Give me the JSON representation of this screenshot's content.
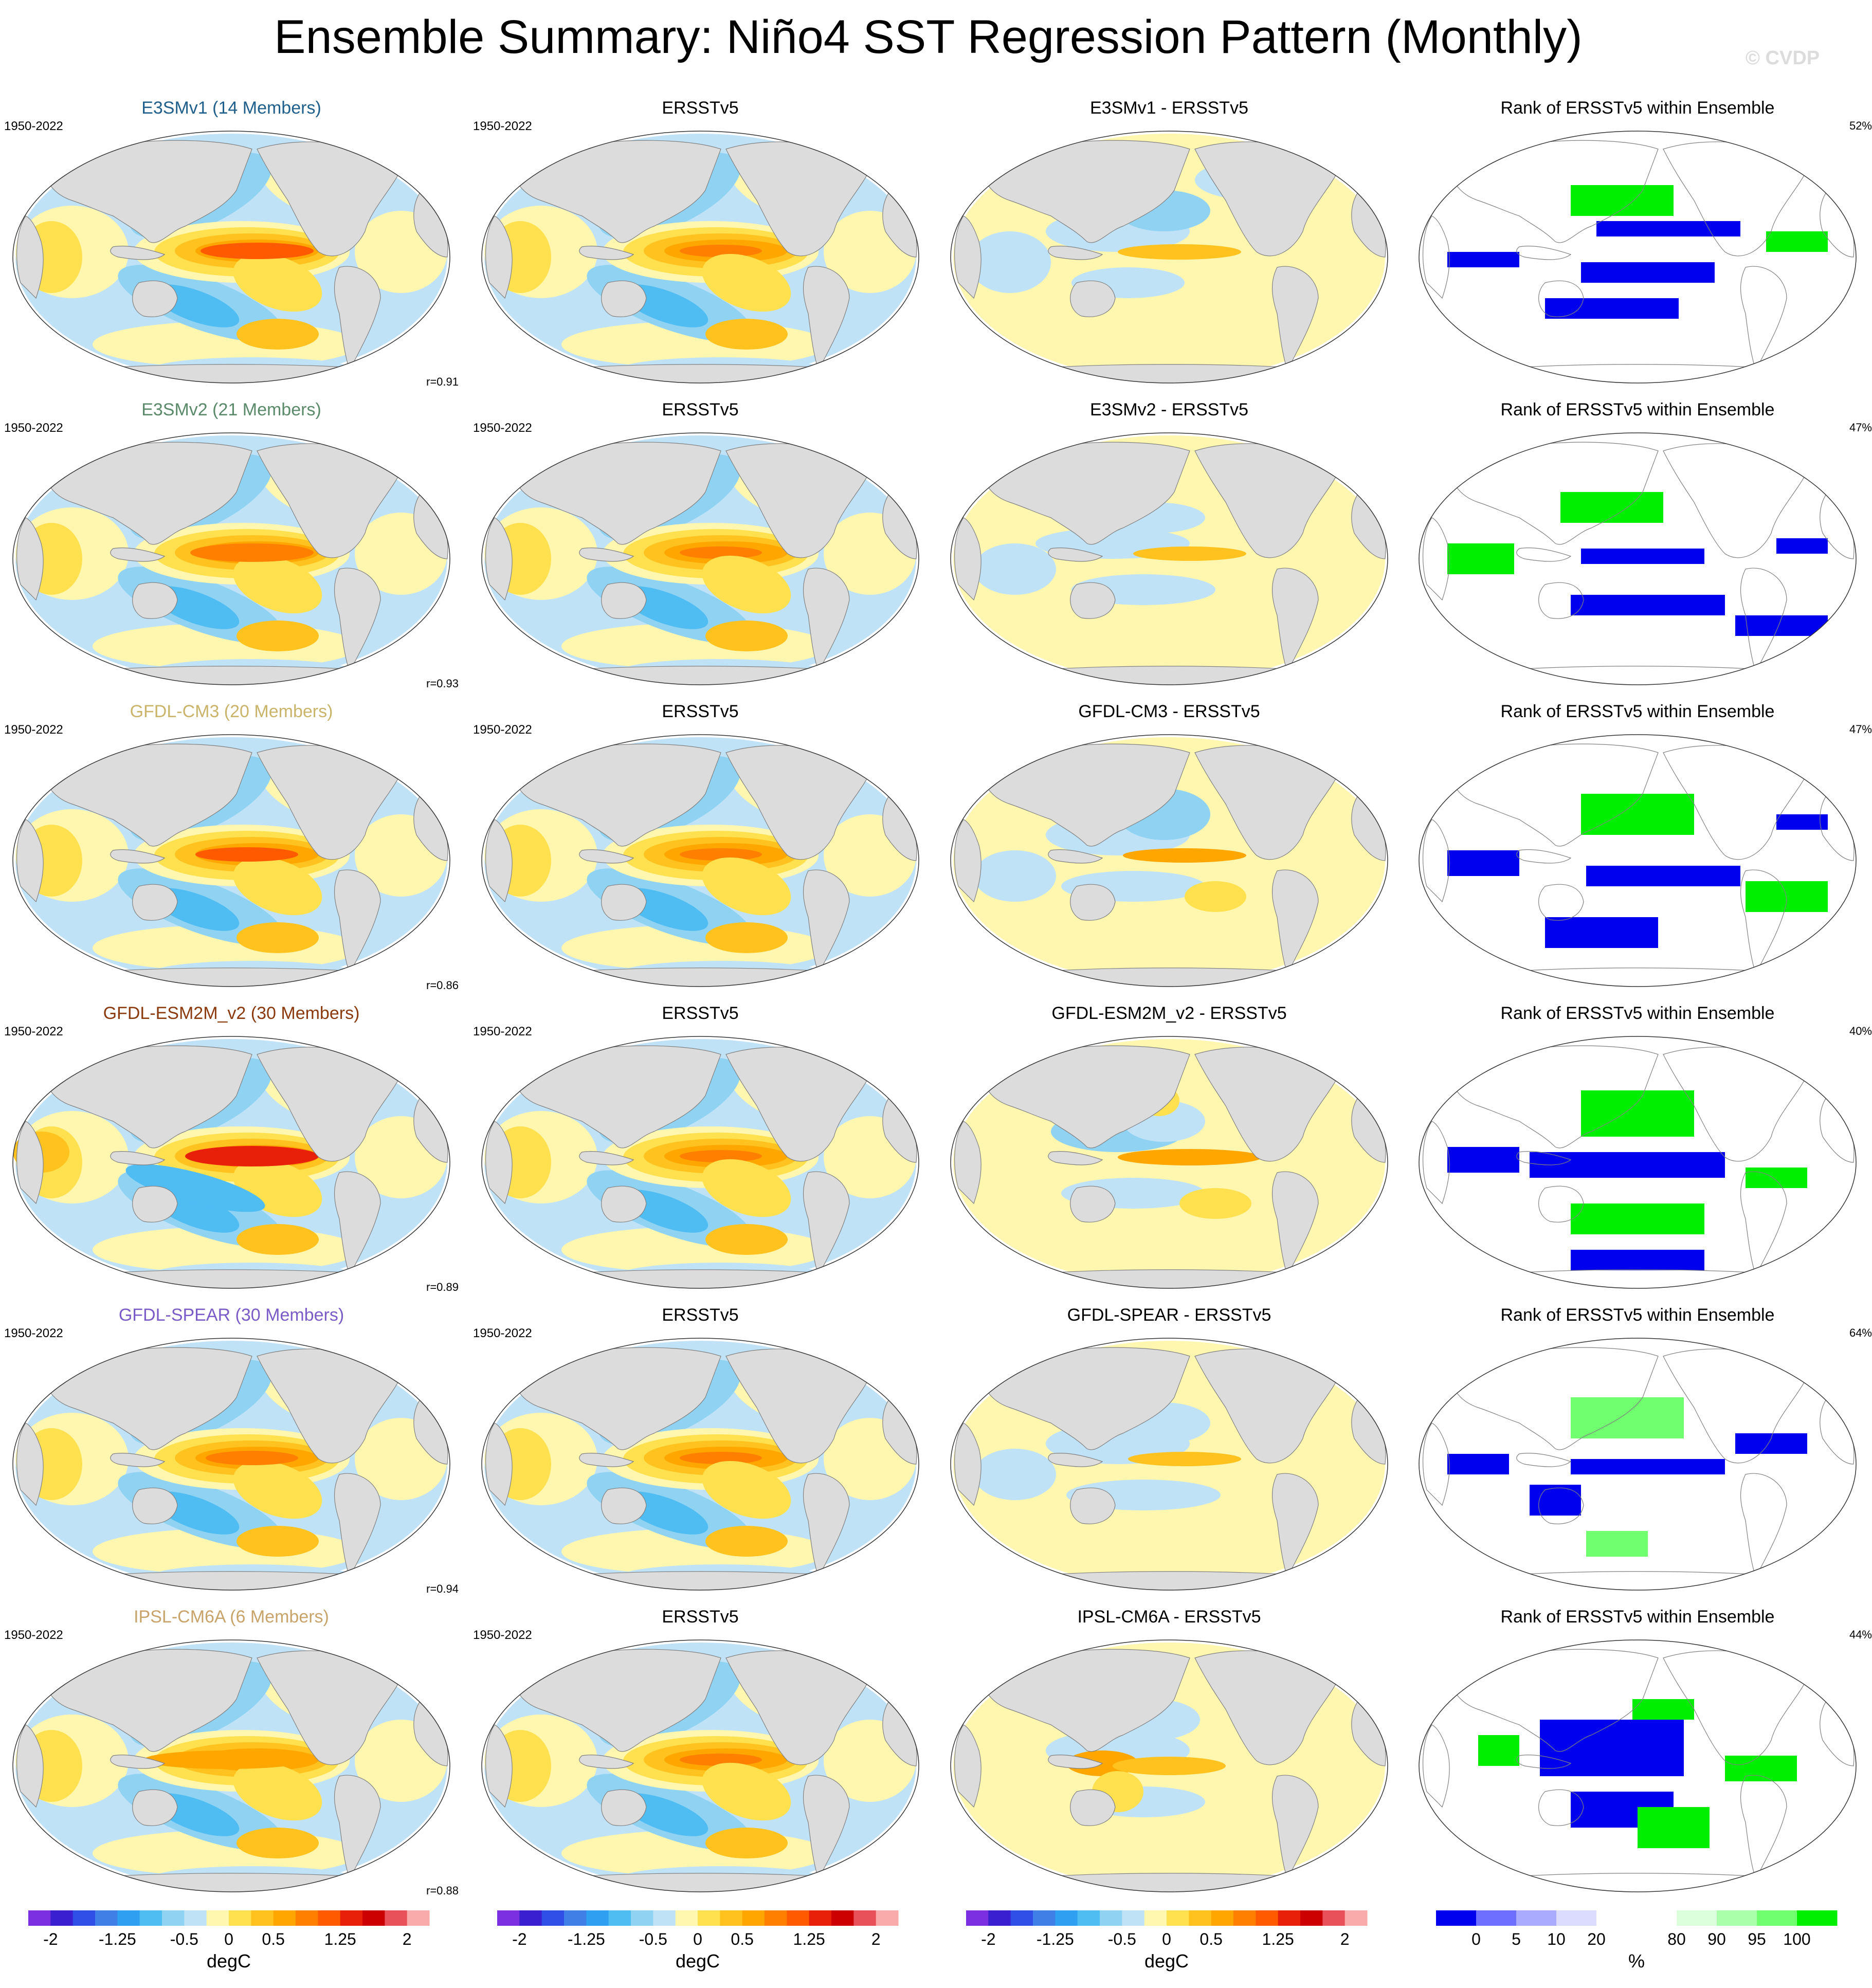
{
  "figure_title": "Ensemble Summary: Niño4 SST Regression Pattern (Monthly)",
  "watermark": "© CVDP",
  "colors": {
    "diverging": [
      "#7b2fe0",
      "#3a1fd0",
      "#2f4fe6",
      "#3f7fe6",
      "#2f9ff2",
      "#4fbcf2",
      "#8fd2f2",
      "#bfe2f7",
      "#fff7b0",
      "#ffe14f",
      "#ffc21f",
      "#ffa600",
      "#ff7f00",
      "#ff5a00",
      "#e8200a",
      "#cc0000",
      "#e8505a",
      "#f9aaaa"
    ],
    "rank": [
      "#0000ee",
      "#6f6fff",
      "#aaaaff",
      "#dcdcff",
      "#ffffff",
      "#ffffff",
      "#dcffdc",
      "#aaffaa",
      "#6fff6f",
      "#00ee00"
    ],
    "land": "#dcdcdc"
  },
  "rows": [
    {
      "model_title": "E3SMv1 (14 Members)",
      "model_color": "#1f5f8b",
      "years": "1950-2022",
      "obs_title": "ERSSTv5",
      "obs_years": "1950-2022",
      "diff_title": "E3SMv1 - ERSSTv5",
      "rank_title": "Rank of ERSSTv5 within Ensemble",
      "pct": "52%",
      "corr": "r=0.91"
    },
    {
      "model_title": "E3SMv2 (21 Members)",
      "model_color": "#5a8a6a",
      "years": "1950-2022",
      "obs_title": "ERSSTv5",
      "obs_years": "1950-2022",
      "diff_title": "E3SMv2 - ERSSTv5",
      "rank_title": "Rank of ERSSTv5 within Ensemble",
      "pct": "47%",
      "corr": "r=0.93"
    },
    {
      "model_title": "GFDL-CM3 (20 Members)",
      "model_color": "#c9b46a",
      "years": "1950-2022",
      "obs_title": "ERSSTv5",
      "obs_years": "1950-2022",
      "diff_title": "GFDL-CM3 - ERSSTv5",
      "rank_title": "Rank of ERSSTv5 within Ensemble",
      "pct": "47%",
      "corr": "r=0.86"
    },
    {
      "model_title": "GFDL-ESM2M_v2 (30 Members)",
      "model_color": "#8b3a0e",
      "years": "1950-2022",
      "obs_title": "ERSSTv5",
      "obs_years": "1950-2022",
      "diff_title": "GFDL-ESM2M_v2 - ERSSTv5",
      "rank_title": "Rank of ERSSTv5 within Ensemble",
      "pct": "40%",
      "corr": "r=0.89"
    },
    {
      "model_title": "GFDL-SPEAR (30 Members)",
      "model_color": "#7a5cc8",
      "years": "1950-2022",
      "obs_title": "ERSSTv5",
      "obs_years": "1950-2022",
      "diff_title": "GFDL-SPEAR - ERSSTv5",
      "rank_title": "Rank of ERSSTv5 within Ensemble",
      "pct": "64%",
      "corr": "r=0.94"
    },
    {
      "model_title": "IPSL-CM6A (6 Members)",
      "model_color": "#c8a46a",
      "years": "1950-2022",
      "obs_title": "ERSSTv5",
      "obs_years": "1950-2022",
      "diff_title": "IPSL-CM6A - ERSSTv5",
      "rank_title": "Rank of ERSSTv5 within Ensemble",
      "pct": "44%",
      "corr": "r=0.88"
    }
  ],
  "colorbars": {
    "sst_ticks": [
      "-2",
      "-1.25",
      "-0.5",
      "0",
      "0.5",
      "1.25",
      "2"
    ],
    "sst_unit": "degC",
    "rank_ticks": [
      "0",
      "5",
      "10",
      "20",
      "80",
      "90",
      "95",
      "100"
    ],
    "rank_unit": "%"
  }
}
